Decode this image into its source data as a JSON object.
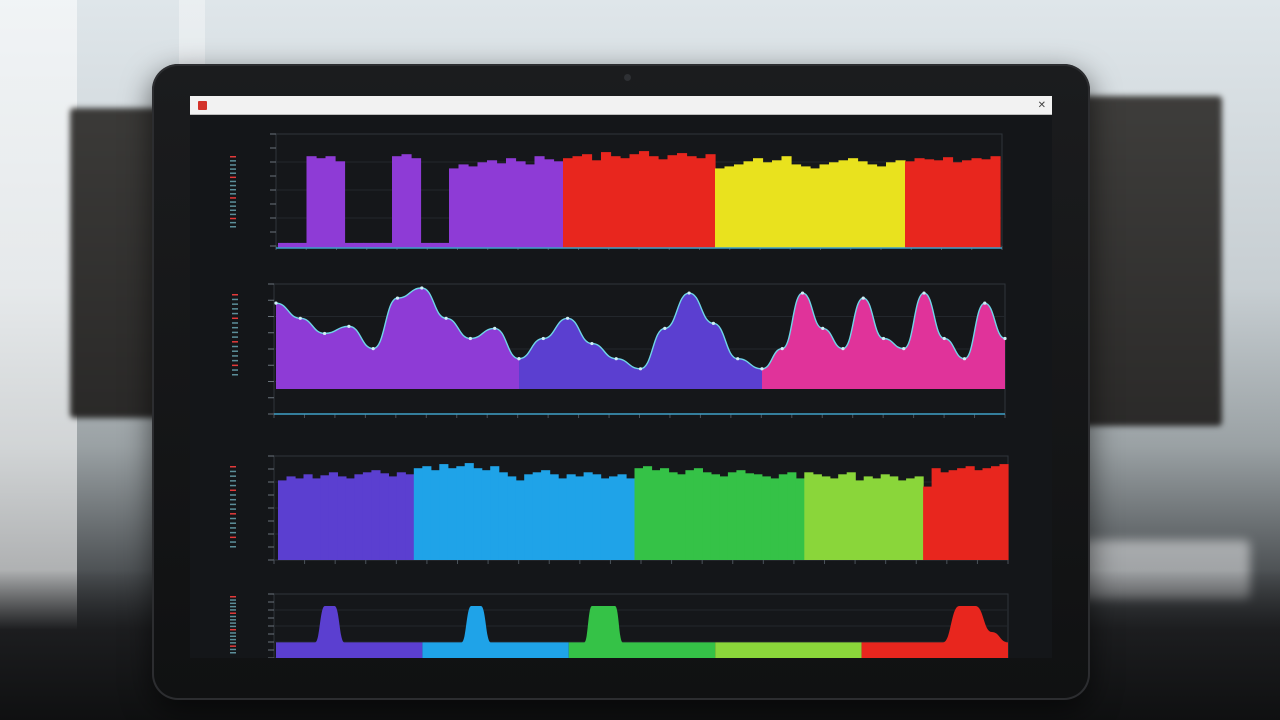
{
  "scene": {
    "description_colors": {
      "purple": "#8e3bd6",
      "violet": "#5b3fd0",
      "red": "#e8261e",
      "yellow": "#e9e21e",
      "magenta": "#e0339a",
      "blue": "#4a3ee0",
      "cyan": "#1fa3e8",
      "green": "#35c247",
      "lime": "#8ad63a"
    }
  },
  "browser": {
    "left_text": "",
    "center_text": "",
    "right_text": ""
  },
  "panels": {
    "p1": {
      "title": "",
      "legend": ""
    },
    "p2": {
      "title": "",
      "legend": ""
    },
    "p3": {
      "title": ""
    },
    "p4": {
      "title": ""
    }
  },
  "chart_data": [
    {
      "type": "bar",
      "segments": [
        {
          "color": "purple",
          "values": [
            0.05,
            0.05,
            0.05,
            0.9,
            0.88,
            0.9,
            0.85,
            0.05,
            0.05,
            0.05,
            0.05,
            0.05,
            0.9,
            0.92,
            0.88,
            0.05,
            0.05,
            0.05,
            0.78,
            0.82,
            0.8,
            0.84,
            0.86,
            0.83,
            0.88,
            0.85,
            0.82,
            0.9,
            0.87,
            0.85
          ]
        },
        {
          "color": "red",
          "values": [
            0.88,
            0.9,
            0.92,
            0.86,
            0.94,
            0.9,
            0.88,
            0.92,
            0.95,
            0.9,
            0.87,
            0.91,
            0.93,
            0.9,
            0.88,
            0.92
          ]
        },
        {
          "color": "yellow",
          "values": [
            0.78,
            0.8,
            0.82,
            0.85,
            0.88,
            0.84,
            0.86,
            0.9,
            0.82,
            0.8,
            0.78,
            0.82,
            0.84,
            0.86,
            0.88,
            0.85,
            0.82,
            0.8,
            0.84,
            0.86
          ]
        },
        {
          "color": "red",
          "values": [
            0.85,
            0.88,
            0.87,
            0.86,
            0.89,
            0.84,
            0.86,
            0.88,
            0.87,
            0.9
          ]
        }
      ]
    },
    {
      "type": "area",
      "series": [
        {
          "color": "purple",
          "values": [
            0.85,
            0.7,
            0.55,
            0.62,
            0.4,
            0.9,
            1.0,
            0.7,
            0.5,
            0.6,
            0.3
          ]
        },
        {
          "color": "violet",
          "values": [
            0.3,
            0.5,
            0.7,
            0.45,
            0.3,
            0.2,
            0.6,
            0.95,
            0.65,
            0.3,
            0.2
          ]
        },
        {
          "color": "magenta",
          "values": [
            0.2,
            0.4,
            0.95,
            0.6,
            0.4,
            0.9,
            0.5,
            0.4,
            0.95,
            0.5,
            0.3,
            0.85,
            0.5
          ]
        }
      ]
    },
    {
      "type": "bar",
      "segments": [
        {
          "color": "violet",
          "values": [
            0.78,
            0.82,
            0.8,
            0.84,
            0.8,
            0.83,
            0.86,
            0.82,
            0.8,
            0.84,
            0.86,
            0.88,
            0.85,
            0.82,
            0.86,
            0.84
          ]
        },
        {
          "color": "cyan",
          "values": [
            0.9,
            0.92,
            0.88,
            0.94,
            0.9,
            0.92,
            0.95,
            0.9,
            0.88,
            0.92,
            0.86,
            0.82,
            0.78,
            0.84,
            0.86,
            0.88,
            0.84,
            0.8,
            0.84,
            0.82,
            0.86,
            0.84,
            0.8,
            0.82,
            0.84,
            0.8
          ]
        },
        {
          "color": "green",
          "values": [
            0.9,
            0.92,
            0.88,
            0.9,
            0.86,
            0.84,
            0.88,
            0.9,
            0.86,
            0.84,
            0.82,
            0.86,
            0.88,
            0.85,
            0.84,
            0.82,
            0.8,
            0.84,
            0.86,
            0.8
          ]
        },
        {
          "color": "lime",
          "values": [
            0.86,
            0.84,
            0.82,
            0.8,
            0.84,
            0.86,
            0.78,
            0.82,
            0.8,
            0.84,
            0.82,
            0.78,
            0.8,
            0.82
          ]
        },
        {
          "color": "red",
          "values": [
            0.72,
            0.9,
            0.86,
            0.88,
            0.9,
            0.92,
            0.88,
            0.9,
            0.92,
            0.94
          ]
        }
      ]
    },
    {
      "type": "area",
      "series": [
        {
          "color": "violet",
          "values": [
            0.3,
            0.3,
            0.3,
            0.3,
            0.3,
            1.0,
            1.0,
            0.3,
            0.3,
            0.3,
            0.3,
            0.3,
            0.3,
            0.3,
            0.3,
            0.3
          ]
        },
        {
          "color": "cyan",
          "values": [
            0.3,
            0.3,
            0.3,
            0.3,
            0.3,
            1.0,
            1.0,
            0.3,
            0.3,
            0.3,
            0.3,
            0.3,
            0.3,
            0.3,
            0.3,
            0.3
          ]
        },
        {
          "color": "green",
          "values": [
            0.3,
            0.3,
            0.3,
            1.0,
            1.0,
            1.0,
            1.0,
            0.3,
            0.3,
            0.3,
            0.3,
            0.3,
            0.3,
            0.3,
            0.3,
            0.3,
            0.3,
            0.3,
            0.3,
            0.3
          ]
        },
        {
          "color": "lime",
          "values": [
            0.3,
            0.3,
            0.3,
            0.3,
            0.3,
            0.3,
            0.3,
            0.3,
            0.3,
            0.3,
            0.3,
            0.3,
            0.3,
            0.3,
            0.3,
            0.3,
            0.3,
            0.3,
            0.3,
            0.3
          ]
        },
        {
          "color": "red",
          "values": [
            0.3,
            0.3,
            0.3,
            0.3,
            0.3,
            0.3,
            1.0,
            1.0,
            0.5,
            0.3
          ]
        }
      ]
    }
  ]
}
